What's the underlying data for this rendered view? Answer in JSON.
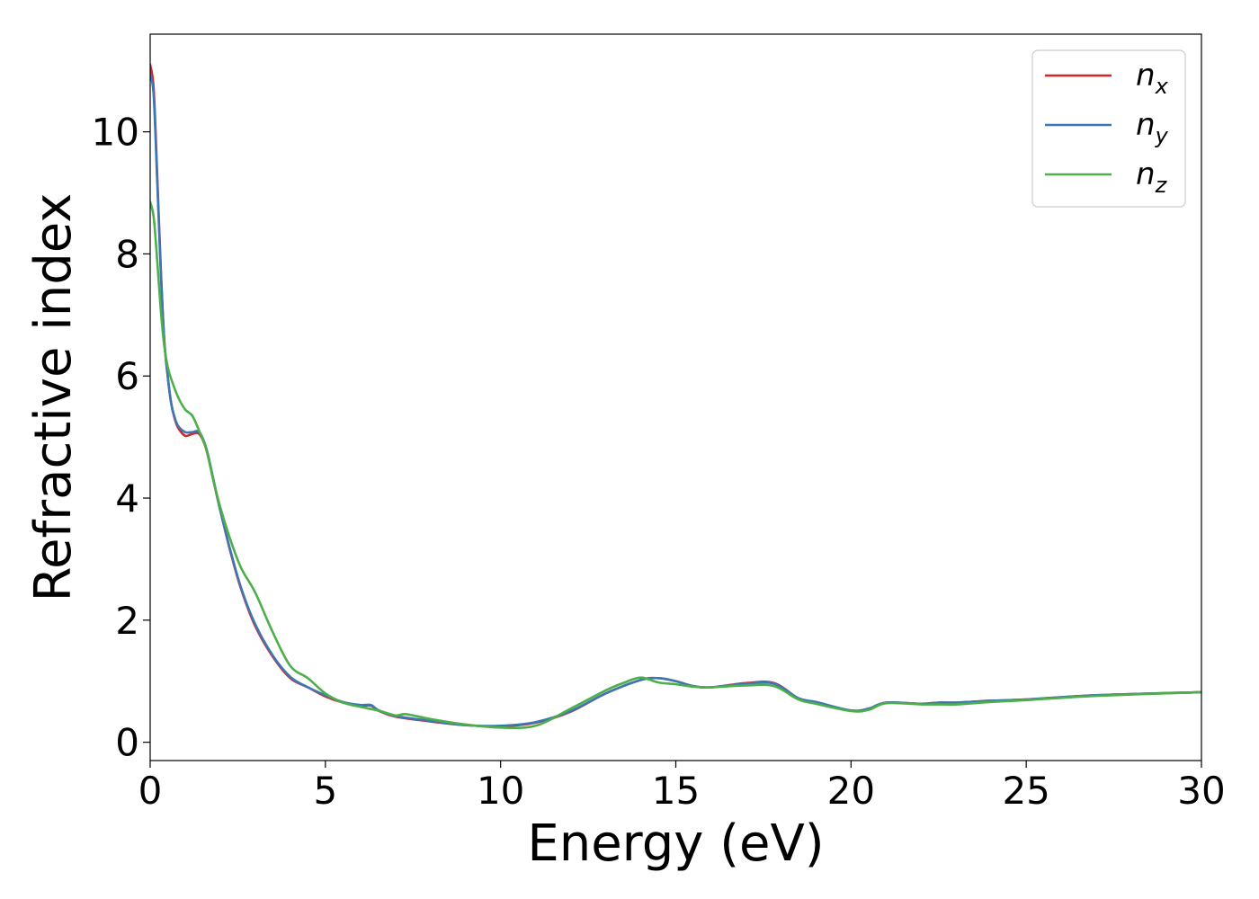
{
  "chart_data": {
    "type": "line",
    "title": "",
    "xlabel": "Energy (eV)",
    "ylabel": "Refractive index",
    "xlim": [
      0,
      30
    ],
    "ylim": [
      -0.3,
      11.6
    ],
    "xticks": [
      0,
      5,
      10,
      15,
      20,
      25,
      30
    ],
    "yticks": [
      0,
      2,
      4,
      6,
      8,
      10
    ],
    "grid": false,
    "legend_position": "top-right",
    "series": [
      {
        "name": "n",
        "sub": "x",
        "color": "#d62728",
        "x": [
          0,
          0.1,
          0.2,
          0.3,
          0.4,
          0.5,
          0.6,
          0.7,
          0.8,
          1.0,
          1.2,
          1.4,
          1.6,
          1.8,
          2.0,
          2.3,
          2.6,
          3.0,
          3.5,
          4.0,
          4.5,
          5.0,
          5.5,
          6.0,
          6.3,
          6.5,
          7.0,
          8.0,
          9.0,
          10.0,
          11.0,
          12.0,
          13.0,
          14.0,
          14.5,
          15.0,
          15.5,
          16.0,
          17.0,
          17.8,
          18.5,
          19.0,
          20.0,
          20.5,
          21.0,
          22.0,
          22.5,
          23.0,
          24.0,
          25.0,
          27.0,
          30.0
        ],
        "y": [
          11.1,
          10.7,
          9.3,
          7.8,
          6.6,
          6.0,
          5.55,
          5.3,
          5.15,
          5.02,
          5.05,
          5.05,
          4.8,
          4.3,
          3.8,
          3.1,
          2.5,
          1.9,
          1.4,
          1.05,
          0.9,
          0.75,
          0.65,
          0.6,
          0.6,
          0.52,
          0.42,
          0.34,
          0.28,
          0.26,
          0.32,
          0.5,
          0.8,
          1.02,
          1.05,
          1.0,
          0.92,
          0.9,
          0.97,
          0.97,
          0.72,
          0.65,
          0.52,
          0.55,
          0.65,
          0.63,
          0.65,
          0.65,
          0.68,
          0.7,
          0.77,
          0.82
        ]
      },
      {
        "name": "n",
        "sub": "y",
        "color": "#3a78b5",
        "x": [
          0,
          0.1,
          0.2,
          0.3,
          0.4,
          0.5,
          0.6,
          0.7,
          0.8,
          1.0,
          1.2,
          1.4,
          1.6,
          1.8,
          2.0,
          2.3,
          2.6,
          3.0,
          3.5,
          4.0,
          4.5,
          5.0,
          5.5,
          6.0,
          6.3,
          6.5,
          7.0,
          8.0,
          9.0,
          10.0,
          11.0,
          12.0,
          13.0,
          14.0,
          14.5,
          15.0,
          15.5,
          16.0,
          17.0,
          17.8,
          18.5,
          19.0,
          20.0,
          20.5,
          21.0,
          22.0,
          22.5,
          23.0,
          24.0,
          25.0,
          27.0,
          30.0
        ],
        "y": [
          10.95,
          10.6,
          9.2,
          7.75,
          6.6,
          6.0,
          5.55,
          5.32,
          5.18,
          5.08,
          5.08,
          5.08,
          4.82,
          4.32,
          3.8,
          3.12,
          2.52,
          1.93,
          1.42,
          1.07,
          0.9,
          0.77,
          0.66,
          0.61,
          0.61,
          0.53,
          0.43,
          0.35,
          0.28,
          0.27,
          0.33,
          0.51,
          0.8,
          1.02,
          1.05,
          1.0,
          0.92,
          0.9,
          0.96,
          0.96,
          0.72,
          0.66,
          0.52,
          0.55,
          0.65,
          0.63,
          0.65,
          0.65,
          0.68,
          0.7,
          0.77,
          0.82
        ]
      },
      {
        "name": "n",
        "sub": "z",
        "color": "#4daf4a",
        "x": [
          0,
          0.1,
          0.2,
          0.3,
          0.4,
          0.5,
          0.6,
          0.8,
          1.0,
          1.2,
          1.4,
          1.6,
          1.8,
          2.0,
          2.3,
          2.6,
          3.0,
          3.5,
          4.0,
          4.5,
          5.0,
          5.5,
          6.0,
          6.5,
          7.0,
          7.3,
          8.0,
          9.0,
          10.0,
          11.0,
          12.0,
          13.0,
          13.5,
          14.0,
          14.5,
          15.0,
          15.5,
          16.0,
          17.0,
          17.8,
          18.5,
          19.0,
          20.0,
          20.5,
          21.0,
          22.0,
          22.5,
          23.0,
          24.0,
          25.0,
          27.0,
          30.0
        ],
        "y": [
          8.85,
          8.6,
          7.9,
          7.1,
          6.5,
          6.15,
          5.95,
          5.65,
          5.45,
          5.35,
          5.1,
          4.8,
          4.3,
          3.85,
          3.3,
          2.85,
          2.45,
          1.8,
          1.25,
          1.05,
          0.8,
          0.65,
          0.58,
          0.52,
          0.44,
          0.46,
          0.38,
          0.29,
          0.24,
          0.27,
          0.55,
          0.85,
          0.97,
          1.06,
          0.98,
          0.95,
          0.91,
          0.9,
          0.93,
          0.92,
          0.7,
          0.63,
          0.51,
          0.53,
          0.64,
          0.62,
          0.62,
          0.62,
          0.66,
          0.69,
          0.76,
          0.82
        ]
      }
    ]
  }
}
